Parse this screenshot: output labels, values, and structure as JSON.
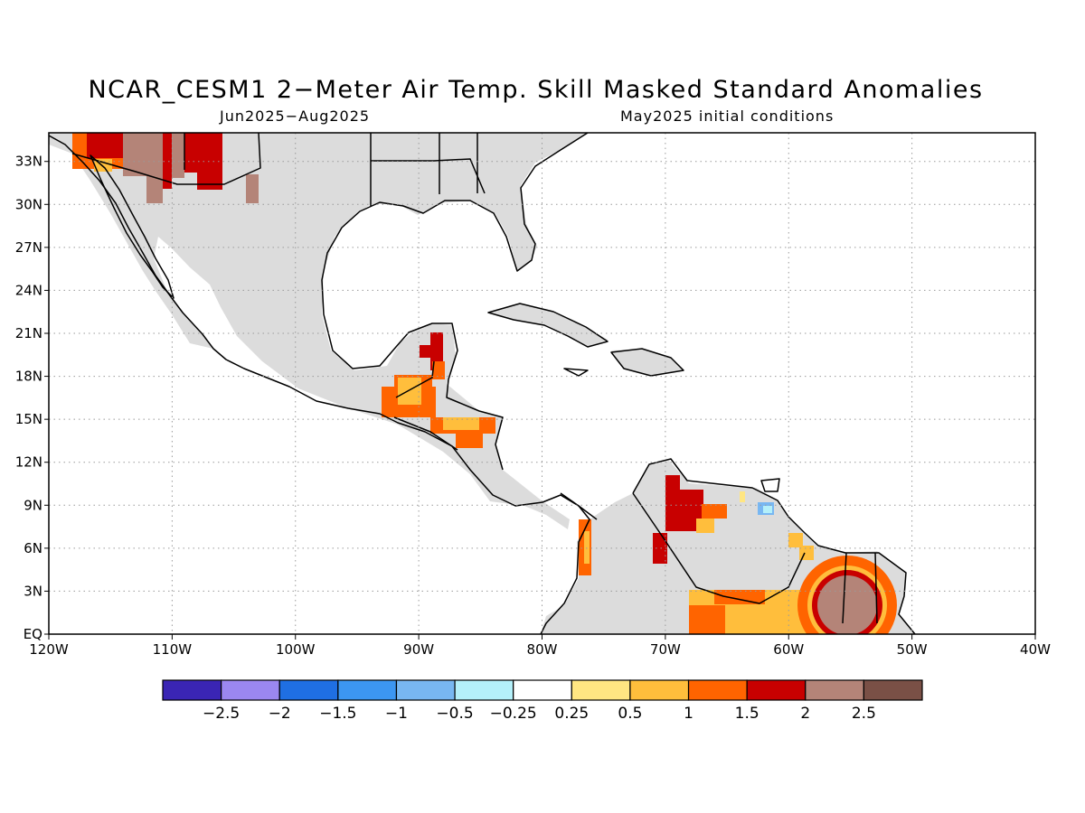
{
  "title": "NCAR_CESM1 2−Meter Air Temp. Skill Masked Standard Anomalies",
  "subtitle_left": "Jun2025−Aug2025",
  "subtitle_right": "May2025 initial conditions",
  "map": {
    "lon_range": [
      -120,
      -40
    ],
    "lat_range": [
      0,
      35
    ],
    "lon_ticks": [
      "120W",
      "110W",
      "100W",
      "90W",
      "80W",
      "70W",
      "60W",
      "50W",
      "40W"
    ],
    "lat_ticks": [
      "EQ",
      "3N",
      "6N",
      "9N",
      "12N",
      "15N",
      "18N",
      "21N",
      "24N",
      "27N",
      "30N",
      "33N"
    ],
    "grid": "dotted",
    "land_no_skill_color": "#dcdcdc",
    "coastline_color": "#000000"
  },
  "colorbar": {
    "colors": [
      "#3a25b4",
      "#9b87f0",
      "#1f6fe3",
      "#3c96f2",
      "#78b7f2",
      "#b4f0fa",
      "#ffffff",
      "#ffe682",
      "#ffbe3c",
      "#ff6400",
      "#c80000",
      "#b48478",
      "#7a5046"
    ],
    "labels": [
      "−2.5",
      "−2",
      "−1.5",
      "−1",
      "−0.5",
      "−0.25",
      "0.25",
      "0.5",
      "1",
      "1.5",
      "2",
      "2.5"
    ]
  }
}
